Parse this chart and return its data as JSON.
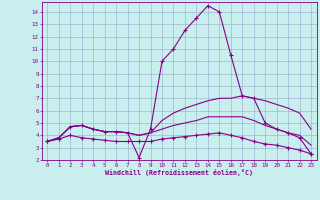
{
  "xlabel": "Windchill (Refroidissement éolien,°C)",
  "xlim": [
    -0.5,
    23.5
  ],
  "ylim": [
    2.0,
    14.8
  ],
  "yticks": [
    2,
    3,
    4,
    5,
    6,
    7,
    8,
    9,
    10,
    11,
    12,
    13,
    14
  ],
  "xticks": [
    0,
    1,
    2,
    3,
    4,
    5,
    6,
    7,
    8,
    9,
    10,
    11,
    12,
    13,
    14,
    15,
    16,
    17,
    18,
    19,
    20,
    21,
    22,
    23
  ],
  "bg_color": "#c8eeee",
  "line_color": "#880088",
  "grid_color": "#99aacc",
  "series": {
    "line1_x": [
      0,
      1,
      2,
      3,
      4,
      5,
      6,
      7,
      8,
      9,
      10,
      11,
      12,
      13,
      14,
      15,
      16,
      17,
      18,
      19,
      20,
      21,
      22,
      23
    ],
    "line1_y": [
      3.5,
      3.8,
      4.7,
      4.8,
      4.5,
      4.3,
      4.3,
      4.2,
      2.2,
      4.5,
      10.0,
      11.0,
      12.5,
      13.5,
      14.5,
      14.0,
      10.5,
      7.2,
      7.0,
      5.0,
      4.5,
      4.2,
      3.8,
      2.5
    ],
    "line1_marker": true,
    "line2_x": [
      0,
      1,
      2,
      3,
      4,
      5,
      6,
      7,
      8,
      9,
      10,
      11,
      12,
      13,
      14,
      15,
      16,
      17,
      18,
      19,
      20,
      21,
      22,
      23
    ],
    "line2_y": [
      3.5,
      3.8,
      4.7,
      4.8,
      4.5,
      4.3,
      4.3,
      4.2,
      4.0,
      4.2,
      5.2,
      5.8,
      6.2,
      6.5,
      6.8,
      7.0,
      7.0,
      7.2,
      7.0,
      6.8,
      6.5,
      6.2,
      5.8,
      4.5
    ],
    "line2_marker": false,
    "line3_x": [
      0,
      1,
      2,
      3,
      4,
      5,
      6,
      7,
      8,
      9,
      10,
      11,
      12,
      13,
      14,
      15,
      16,
      17,
      18,
      19,
      20,
      21,
      22,
      23
    ],
    "line3_y": [
      3.5,
      3.8,
      4.7,
      4.8,
      4.5,
      4.3,
      4.3,
      4.2,
      4.0,
      4.2,
      4.5,
      4.8,
      5.0,
      5.2,
      5.5,
      5.5,
      5.5,
      5.5,
      5.2,
      4.8,
      4.5,
      4.2,
      4.0,
      3.2
    ],
    "line3_marker": false,
    "line4_x": [
      0,
      1,
      2,
      3,
      4,
      5,
      6,
      7,
      8,
      9,
      10,
      11,
      12,
      13,
      14,
      15,
      16,
      17,
      18,
      19,
      20,
      21,
      22,
      23
    ],
    "line4_y": [
      3.5,
      3.7,
      4.0,
      3.8,
      3.7,
      3.6,
      3.5,
      3.5,
      3.5,
      3.5,
      3.7,
      3.8,
      3.9,
      4.0,
      4.1,
      4.2,
      4.0,
      3.8,
      3.5,
      3.3,
      3.2,
      3.0,
      2.8,
      2.5
    ],
    "line4_marker": true
  }
}
